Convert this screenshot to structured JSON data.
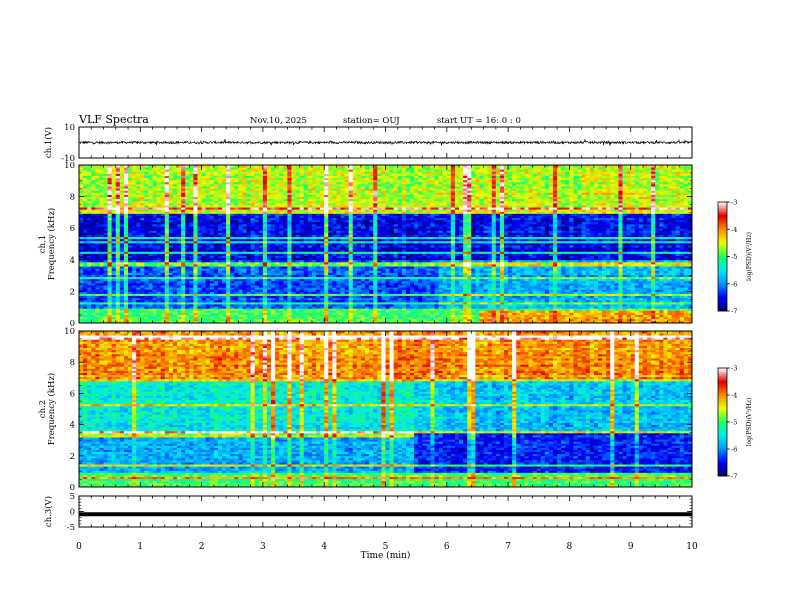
{
  "header": {
    "title": "VLF Spectra",
    "date": "Nov.10, 2025",
    "station": "station= OUJ",
    "start": "start  UT =   16: 0  : 0"
  },
  "colors": {
    "cmap": [
      "#00006a",
      "#0000ff",
      "#0090ff",
      "#00e8f0",
      "#20ff60",
      "#e8ff00",
      "#ff8800",
      "#e00000",
      "#ffffff"
    ],
    "trace": "#000000",
    "frame": "#000000"
  },
  "chart_data": [
    {
      "type": "line",
      "name": "ch.1 waveform",
      "ylabel": "ch.1(V)",
      "ylim": [
        -10,
        10
      ],
      "yticks": [
        "10",
        "-10"
      ],
      "mean": 0.0,
      "noise_amplitude": 1.2
    },
    {
      "type": "heatmap",
      "name": "ch.1 spectrogram",
      "ylabel": "ch.1\nFrequency (kHz)",
      "ylim": [
        0,
        10
      ],
      "yticks": [
        "0",
        "2",
        "4",
        "6",
        "8",
        "10"
      ],
      "colorbar": {
        "label": "log(PSD)(V²/Hz)",
        "range": [
          -7,
          -3
        ],
        "ticks": [
          "-3",
          "-4",
          "-5",
          "-6",
          "-7"
        ]
      },
      "description_levels": {
        "0-1kHz": -5.0,
        "1-4kHz": -6.2,
        "4-7kHz": -6.6,
        "7-10kHz": -4.6
      },
      "events_min": [
        5.85,
        9.3
      ]
    },
    {
      "type": "heatmap",
      "name": "ch.2 spectrogram",
      "ylabel": "ch.2\nFrequency (kHz)",
      "ylim": [
        0,
        10
      ],
      "yticks": [
        "0",
        "2",
        "4",
        "6",
        "8",
        "10"
      ],
      "colorbar": {
        "label": "log(PSD)(V²/Hz)",
        "range": [
          -7,
          -3
        ],
        "ticks": [
          "-3",
          "-4",
          "-5",
          "-6",
          "-7"
        ]
      },
      "description_levels": {
        "0-1kHz": -5.0,
        "1-3.5kHz": -5.8,
        "3.5-7kHz": -5.4,
        "7-10kHz": -4.0
      },
      "band_change_min": 5.45
    },
    {
      "type": "line",
      "name": "ch.3 trace",
      "ylabel": "ch.3(V)",
      "ylim": [
        -5,
        5
      ],
      "yticks": [
        "5",
        "0",
        "-5"
      ],
      "value": -0.9
    },
    {
      "type": "axis",
      "name": "time axis",
      "xlabel": "Time (min)",
      "xlim": [
        0,
        10
      ],
      "xticks": [
        "0",
        "1",
        "2",
        "3",
        "4",
        "5",
        "6",
        "7",
        "8",
        "9",
        "10"
      ]
    }
  ]
}
